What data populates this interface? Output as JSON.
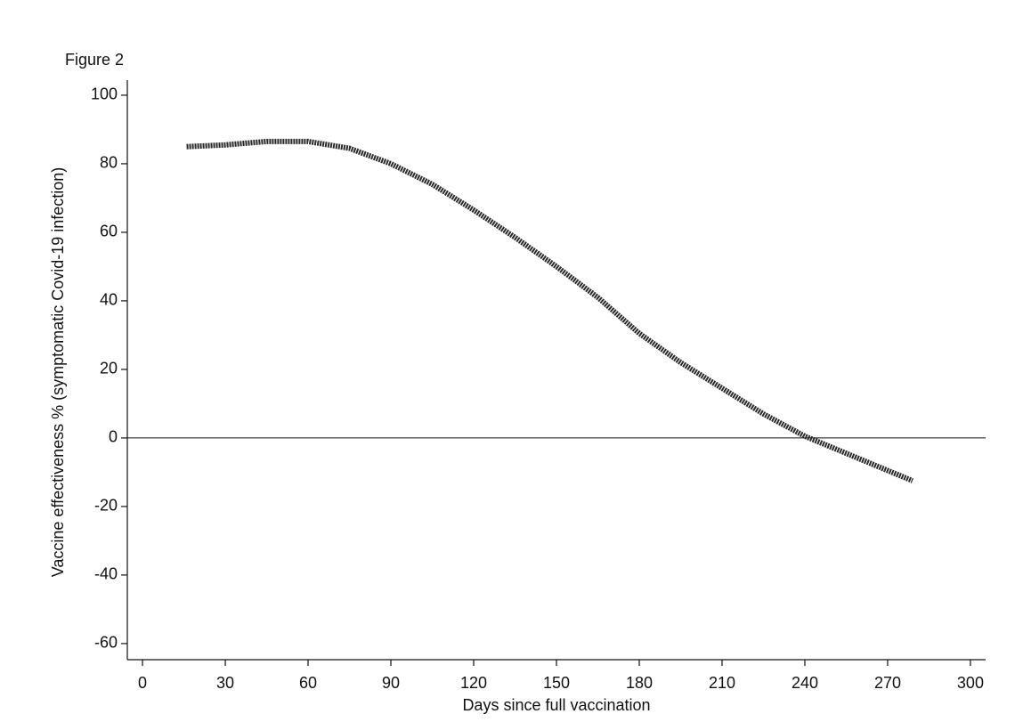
{
  "chart_data": {
    "type": "line",
    "title": "Figure 2",
    "x_label": "Days since full vaccination",
    "y_label": "Vaccine effectiveness % (symptomatic Covid-19 infection)",
    "x": [
      16,
      30,
      45,
      60,
      75,
      90,
      105,
      120,
      135,
      150,
      165,
      180,
      195,
      210,
      225,
      240,
      255,
      270,
      279
    ],
    "series": [
      {
        "color": "#2a2a2a",
        "values": [
          85,
          85.5,
          86.5,
          86.5,
          84.5,
          80,
          74,
          66.5,
          58.5,
          50,
          41,
          30.5,
          22,
          14.5,
          7,
          0.5,
          -4.5,
          -9.5,
          -12.5
        ]
      }
    ],
    "xlim": [
      -5.5,
      305.5
    ],
    "ylim": [
      -64.7,
      104.4
    ],
    "xticks": [
      0,
      30,
      60,
      90,
      120,
      150,
      180,
      210,
      240,
      270,
      300
    ],
    "yticks": [
      -60,
      -40,
      -20,
      0,
      20,
      40,
      60,
      80,
      100
    ],
    "reference_line": 0
  }
}
